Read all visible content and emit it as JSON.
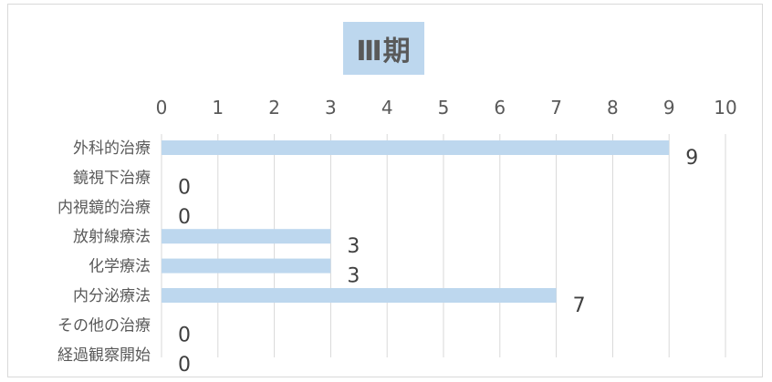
{
  "chart_data": {
    "type": "bar",
    "orientation": "horizontal",
    "title": "Ⅲ期",
    "categories": [
      "外科的治療",
      "鏡視下治療",
      "内視鏡的治療",
      "放射線療法",
      "化学療法",
      "内分泌療法",
      "その他の治療",
      "経過観察開始"
    ],
    "values": [
      9,
      0,
      0,
      3,
      3,
      7,
      0,
      0
    ],
    "xlim": [
      0,
      10
    ],
    "x_ticks": [
      "0",
      "1",
      "2",
      "3",
      "4",
      "5",
      "6",
      "7",
      "8",
      "9",
      "10"
    ],
    "x_axis_position": "top",
    "grid": true,
    "legend": "none",
    "data_labels": true,
    "bar_color": "#bdd7ee",
    "title_background": "#bdd7ee",
    "grid_color": "#d9d9d9",
    "text_color": "#595959"
  }
}
